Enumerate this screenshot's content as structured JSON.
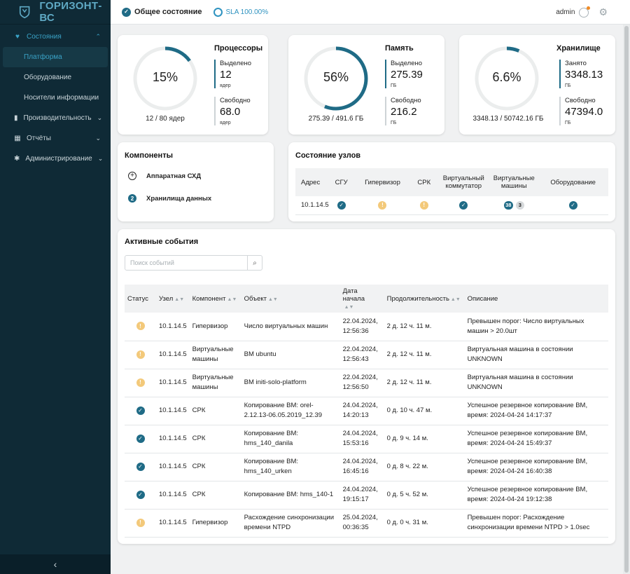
{
  "brand": {
    "name": "ГОРИЗОНТ-ВС",
    "logo_icon": "shield-logo-icon"
  },
  "sidebar": {
    "groups": [
      {
        "label": "Состояния",
        "icon": "heart-pulse-icon",
        "expanded": true,
        "active": true,
        "items": [
          {
            "label": "Платформа",
            "active": true
          },
          {
            "label": "Оборудование",
            "active": false
          },
          {
            "label": "Носители информации",
            "active": false
          }
        ]
      },
      {
        "label": "Производительность",
        "icon": "bar-chart-icon"
      },
      {
        "label": "Отчёты",
        "icon": "calendar-icon"
      },
      {
        "label": "Администрирование",
        "icon": "gear-icon"
      }
    ],
    "collapse_label": "‹"
  },
  "header": {
    "status_label": "Общее состояние",
    "sla_label": "SLA 100.00%",
    "user": "admin"
  },
  "resources": [
    {
      "title": "Процессоры",
      "percent_label": "15%",
      "fraction": 0.15,
      "summary": "12 / 80 ядер",
      "used_label": "Выделено",
      "used_value": "12",
      "used_unit": "ядер",
      "free_label": "Свободно",
      "free_value": "68.0",
      "free_unit": "ядер"
    },
    {
      "title": "Память",
      "percent_label": "56%",
      "fraction": 0.56,
      "summary": "275.39 / 491.6 ГБ",
      "used_label": "Выделено",
      "used_value": "275.39",
      "used_unit": "ГБ",
      "free_label": "Свободно",
      "free_value": "216.2",
      "free_unit": "ГБ"
    },
    {
      "title": "Хранилище",
      "percent_label": "6.6%",
      "fraction": 0.066,
      "summary": "3348.13 / 50742.16 ГБ",
      "used_label": "Занято",
      "used_value": "3348.13",
      "used_unit": "ГБ",
      "free_label": "Свободно",
      "free_value": "47394.0",
      "free_unit": "ГБ"
    }
  ],
  "components": {
    "title": "Компоненты",
    "items": [
      {
        "label": "Аппаратная СХД",
        "icon": "plus-circle-icon",
        "badge": "+"
      },
      {
        "label": "Хранилища данных",
        "icon": "count-badge-icon",
        "badge": "2"
      }
    ]
  },
  "nodes": {
    "title": "Состояние узлов",
    "columns": [
      "Адрес",
      "СГУ",
      "Гипервизор",
      "СРК",
      "Виртуальный коммутатор",
      "Виртуальные машины",
      "Оборудование"
    ],
    "rows": [
      {
        "address": "10.1.14.5",
        "sgu": "ok",
        "hypervisor": "warn",
        "srk": "warn",
        "vswitch": "ok",
        "vm_ok": "38",
        "vm_other": "3",
        "hardware": "ok"
      }
    ]
  },
  "events": {
    "title": "Активные события",
    "search_placeholder": "Поиск событий",
    "columns": [
      "Статус",
      "Узел",
      "Компонент",
      "Объект",
      "Дата начала",
      "Продолжительность",
      "Описание"
    ],
    "rows": [
      {
        "status": "warn",
        "node": "10.1.14.5",
        "component": "Гипервизор",
        "object": "Число виртуальных машин",
        "date": "22.04.2024, 12:56:36",
        "duration": "2 д. 12 ч. 11 м.",
        "description": "Превышен порог: Число виртуальных машин > 20.0шт"
      },
      {
        "status": "warn",
        "node": "10.1.14.5",
        "component": "Виртуальные машины",
        "object": "ВМ ubuntu",
        "date": "22.04.2024, 12:56:43",
        "duration": "2 д. 12 ч. 11 м.",
        "description": "Виртуальная машина в состоянии UNKNOWN"
      },
      {
        "status": "warn",
        "node": "10.1.14.5",
        "component": "Виртуальные машины",
        "object": "ВМ initi-solo-platform",
        "date": "22.04.2024, 12:56:50",
        "duration": "2 д. 12 ч. 11 м.",
        "description": "Виртуальная машина в состоянии UNKNOWN"
      },
      {
        "status": "ok",
        "node": "10.1.14.5",
        "component": "СРК",
        "object": "Копирование ВМ: orel-2.12.13-06.05.2019_12.39",
        "date": "24.04.2024, 14:20:13",
        "duration": "0 д. 10 ч. 47 м.",
        "description": "Успешное резервное копирование ВМ, время: 2024-04-24 14:17:37"
      },
      {
        "status": "ok",
        "node": "10.1.14.5",
        "component": "СРК",
        "object": "Копирование ВМ: hms_140_danila",
        "date": "24.04.2024, 15:53:16",
        "duration": "0 д. 9 ч. 14 м.",
        "description": "Успешное резервное копирование ВМ, время: 2024-04-24 15:49:37"
      },
      {
        "status": "ok",
        "node": "10.1.14.5",
        "component": "СРК",
        "object": "Копирование ВМ: hms_140_urken",
        "date": "24.04.2024, 16:45:16",
        "duration": "0 д. 8 ч. 22 м.",
        "description": "Успешное резервное копирование ВМ, время: 2024-04-24 16:40:38"
      },
      {
        "status": "ok",
        "node": "10.1.14.5",
        "component": "СРК",
        "object": "Копирование ВМ: hms_140-1",
        "date": "24.04.2024, 19:15:17",
        "duration": "0 д. 5 ч. 52 м.",
        "description": "Успешное резервное копирование ВМ, время: 2024-04-24 19:12:38"
      },
      {
        "status": "warn",
        "node": "10.1.14.5",
        "component": "Гипервизор",
        "object": "Расхождение синхронизации времени NTPD",
        "date": "25.04.2024, 00:36:35",
        "duration": "0 д. 0 ч. 31 м.",
        "description": "Превышен порог: Расхождение синхронизации времени NTPD > 1.0sec"
      }
    ]
  },
  "colors": {
    "accent": "#1f6b86",
    "warning": "#f3c97a",
    "sidebar_bg": "#0f2a36",
    "link": "#2f93c0"
  }
}
